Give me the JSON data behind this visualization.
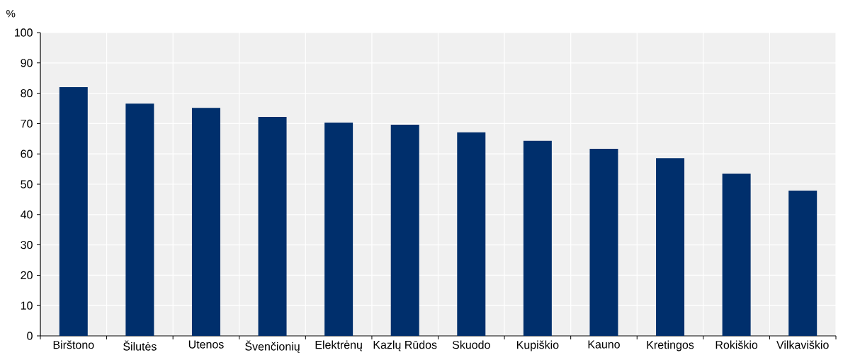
{
  "chart_data": {
    "type": "bar",
    "ylabel": "%",
    "categories": [
      "Birštono",
      "Šilutės",
      "Utenos",
      "Švenčionių",
      "Elektrėnų",
      "Kazlų Rūdos",
      "Skuodo",
      "Kupiškio",
      "Kauno",
      "Kretingos",
      "Rokiškio",
      "Vilkaviškio"
    ],
    "values": [
      82.0,
      76.6,
      75.2,
      72.2,
      70.3,
      69.6,
      67.1,
      64.3,
      61.7,
      58.6,
      53.5,
      47.9
    ],
    "color": "#002f6c",
    "ylim": [
      0,
      100
    ],
    "yticks": [
      0,
      10,
      20,
      30,
      40,
      50,
      60,
      70,
      80,
      90,
      100
    ],
    "grid": true
  }
}
